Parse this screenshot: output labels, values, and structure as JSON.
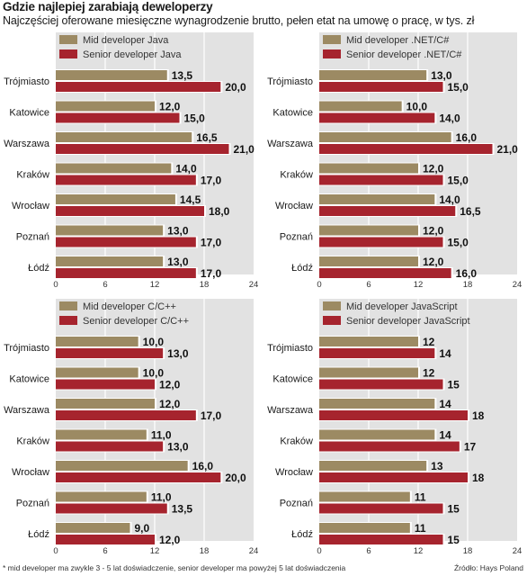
{
  "header": {
    "title": "Gdzie najlepiej zarabiają deweloperzy",
    "subtitle": "Najczęściej oferowane miesięczne wynagrodzenie brutto, pełen etat na umowę o pracę, w tys. zł"
  },
  "footer": {
    "note": "* mid developer ma zwykle 3 - 5 lat doświadczenie, senior developer ma powyżej 5 lat doświadczenia",
    "source": "Źródło: Hays Poland"
  },
  "colors": {
    "mid": "#9c8a63",
    "senior": "#a6242e",
    "background": "#e2e2e2",
    "gridline": "#ffffff"
  },
  "chart_data": [
    {
      "type": "bar",
      "orientation": "horizontal",
      "categories": [
        "Trójmiasto",
        "Katowice",
        "Warszawa",
        "Kraków",
        "Wrocław",
        "Poznań",
        "Łódź"
      ],
      "series": [
        {
          "name": "Mid developer Java",
          "values": [
            13.5,
            12.0,
            16.5,
            14.0,
            14.5,
            13.0,
            13.0
          ],
          "labels": [
            "13,5",
            "12,0",
            "16,5",
            "14,0",
            "14,5",
            "13,0",
            "13,0"
          ]
        },
        {
          "name": "Senior developer Java",
          "values": [
            20.0,
            15.0,
            21.0,
            17.0,
            18.0,
            17.0,
            17.0
          ],
          "labels": [
            "20,0",
            "15,0",
            "21,0",
            "17,0",
            "18,0",
            "17,0",
            "17,0"
          ]
        }
      ],
      "xlim": [
        0,
        24
      ],
      "xticks": [
        "0",
        "6",
        "12",
        "18",
        "24"
      ],
      "legend_position": "top-left"
    },
    {
      "type": "bar",
      "orientation": "horizontal",
      "categories": [
        "Trójmiasto",
        "Katowice",
        "Warszawa",
        "Kraków",
        "Wrocław",
        "Poznań",
        "Łódź"
      ],
      "series": [
        {
          "name": "Mid developer .NET/C#",
          "values": [
            13.0,
            10.0,
            16.0,
            12.0,
            14.0,
            12.0,
            12.0
          ],
          "labels": [
            "13,0",
            "10,0",
            "16,0",
            "12,0",
            "14,0",
            "12,0",
            "12,0"
          ]
        },
        {
          "name": "Senior developer .NET/C#",
          "values": [
            15.0,
            14.0,
            21.0,
            15.0,
            16.5,
            15.0,
            16.0
          ],
          "labels": [
            "15,0",
            "14,0",
            "21,0",
            "15,0",
            "16,5",
            "15,0",
            "16,0"
          ]
        }
      ],
      "xlim": [
        0,
        24
      ],
      "xticks": [
        "0",
        "6",
        "12",
        "18",
        "24"
      ],
      "legend_position": "top-left"
    },
    {
      "type": "bar",
      "orientation": "horizontal",
      "categories": [
        "Trójmiasto",
        "Katowice",
        "Warszawa",
        "Kraków",
        "Wrocław",
        "Poznań",
        "Łódź"
      ],
      "series": [
        {
          "name": "Mid developer C/C++",
          "values": [
            10.0,
            10.0,
            12.0,
            11.0,
            16.0,
            11.0,
            9.0
          ],
          "labels": [
            "10,0",
            "10,0",
            "12,0",
            "11,0",
            "16,0",
            "11,0",
            "9,0"
          ]
        },
        {
          "name": "Senior developer C/C++",
          "values": [
            13.0,
            12.0,
            17.0,
            13.0,
            20.0,
            13.5,
            12.0
          ],
          "labels": [
            "13,0",
            "12,0",
            "17,0",
            "13,0",
            "20,0",
            "13,5",
            "12,0"
          ]
        }
      ],
      "xlim": [
        0,
        24
      ],
      "xticks": [
        "0",
        "6",
        "12",
        "18",
        "24"
      ],
      "legend_position": "top-left"
    },
    {
      "type": "bar",
      "orientation": "horizontal",
      "categories": [
        "Trójmiasto",
        "Katowice",
        "Warszawa",
        "Kraków",
        "Wrocław",
        "Poznań",
        "Łódź"
      ],
      "series": [
        {
          "name": "Mid developer JavaScript",
          "values": [
            12,
            12,
            14,
            14,
            13,
            11,
            11
          ],
          "labels": [
            "12",
            "12",
            "14",
            "14",
            "13",
            "11",
            "11"
          ]
        },
        {
          "name": "Senior developer JavaScript",
          "values": [
            14,
            15,
            18,
            17,
            18,
            15,
            15
          ],
          "labels": [
            "14",
            "15",
            "18",
            "17",
            "18",
            "15",
            "15"
          ]
        }
      ],
      "xlim": [
        0,
        24
      ],
      "xticks": [
        "0",
        "6",
        "12",
        "18",
        "24"
      ],
      "legend_position": "top-left"
    }
  ]
}
